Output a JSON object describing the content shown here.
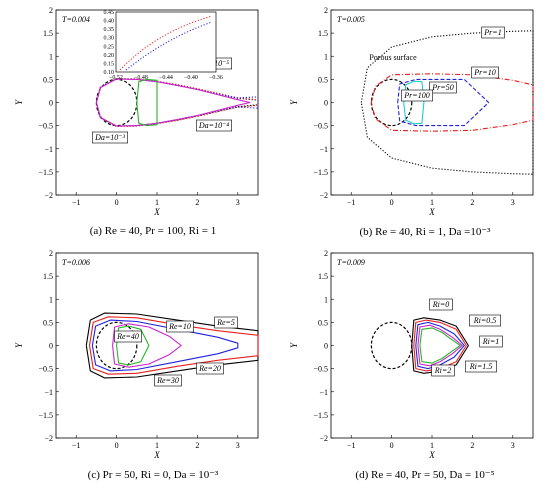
{
  "chart_data": [
    {
      "panel": "a",
      "type": "line",
      "caption": "(a) Re = 40, Pr = 100, Ri = 1",
      "time_label": "T=0.004",
      "xlabel": "X",
      "ylabel": "Y",
      "xlim": [
        -1.5,
        3.5
      ],
      "ylim": [
        -2.0,
        2.0
      ],
      "xticks": [
        -1,
        0,
        1,
        2,
        3
      ],
      "yticks": [
        -2.0,
        -1.5,
        -1.0,
        -0.5,
        0.0,
        0.5,
        1.0,
        1.5,
        2.0
      ],
      "annotations": [
        "Da=10⁻⁶",
        "Da=10⁻⁵",
        "Da=10⁻⁴",
        "Da=10⁻³"
      ],
      "inset": {
        "xticks": [
          -0.52,
          -0.48,
          -0.44,
          -0.4,
          -0.36
        ],
        "yticks": [
          0.1,
          0.15,
          0.2,
          0.25,
          0.3,
          0.35,
          0.4,
          0.45
        ]
      },
      "series": [
        {
          "color": "#000000",
          "style": "dotted",
          "x": [
            -0.5,
            -0.4,
            0.0,
            0.5,
            1.0,
            1.5,
            2.0,
            2.5,
            3.0,
            3.5
          ],
          "y": [
            0.0,
            0.33,
            0.51,
            0.5,
            0.45,
            0.38,
            0.29,
            0.19,
            0.09,
            0.05
          ]
        },
        {
          "color": "#e8211e",
          "style": "dotted",
          "x": [
            -0.5,
            -0.4,
            0.0,
            0.5,
            1.0,
            1.5,
            2.0,
            2.5,
            3.0,
            3.5
          ],
          "y": [
            0.0,
            0.33,
            0.52,
            0.51,
            0.46,
            0.39,
            0.3,
            0.2,
            0.1,
            0.06
          ]
        },
        {
          "color": "#2222dd",
          "style": "dotted",
          "x": [
            -0.5,
            -0.4,
            0.0,
            0.5,
            1.0,
            1.5,
            2.0,
            2.5,
            3.0,
            3.5
          ],
          "y": [
            0.0,
            0.33,
            0.51,
            0.5,
            0.45,
            0.37,
            0.28,
            0.18,
            0.1,
            0.12
          ]
        },
        {
          "color": "#cc22cc",
          "style": "solid",
          "x": [
            -0.5,
            -0.4,
            0.0,
            0.5,
            1.0,
            1.5,
            2.0,
            2.5,
            3.0,
            3.3
          ],
          "y": [
            0.0,
            0.32,
            0.51,
            0.5,
            0.45,
            0.37,
            0.28,
            0.17,
            0.06,
            0.0
          ]
        },
        {
          "color": "#2ab52a",
          "style": "solid",
          "x": [
            0.5,
            0.55,
            0.75,
            1.0
          ],
          "y": [
            0.0,
            0.45,
            0.5,
            0.48
          ]
        }
      ]
    },
    {
      "panel": "b",
      "type": "line",
      "caption": "(b) Re = 40, Ri = 1, Da =10⁻³",
      "time_label": "T=0.005",
      "xlabel": "X",
      "ylabel": "Y",
      "xlim": [
        -1.5,
        3.5
      ],
      "ylim": [
        -2.0,
        2.0
      ],
      "xticks": [
        -1,
        0,
        1,
        2,
        3
      ],
      "yticks": [
        -2.0,
        -1.5,
        -1.0,
        -0.5,
        0.0,
        0.5,
        1.0,
        1.5,
        2.0
      ],
      "annotations": [
        "Porous surface",
        "Pr=1",
        "Pr=10",
        "Pr=50",
        "Pr=100"
      ],
      "series": [
        {
          "name": "Pr=1",
          "color": "#000000",
          "style": "dotted",
          "x": [
            -0.75,
            -0.6,
            0.0,
            1.0,
            2.0,
            3.0,
            3.5
          ],
          "y": [
            0.0,
            0.75,
            1.2,
            1.42,
            1.5,
            1.54,
            1.55
          ]
        },
        {
          "name": "Pr=10",
          "color": "#e8211e",
          "style": "dashdot",
          "x": [
            -0.5,
            -0.4,
            0.0,
            1.0,
            2.0,
            3.0,
            3.5
          ],
          "y": [
            0.0,
            0.35,
            0.6,
            0.62,
            0.6,
            0.48,
            0.38
          ]
        },
        {
          "name": "Pr=50",
          "color": "#2222dd",
          "style": "dashed",
          "x": [
            0.15,
            0.2,
            0.6,
            1.2,
            1.8,
            2.4
          ],
          "y": [
            0.0,
            0.4,
            0.5,
            0.5,
            0.5,
            0.0
          ]
        },
        {
          "name": "Pr=100",
          "color": "#22cccc",
          "style": "solid",
          "x": [
            0.3,
            0.35,
            0.55,
            0.75,
            0.8
          ],
          "y": [
            0.0,
            0.38,
            0.46,
            0.45,
            0.0
          ]
        }
      ]
    },
    {
      "panel": "c",
      "type": "line",
      "caption": "(c) Pr = 50, Ri = 0, Da = 10⁻³",
      "time_label": "T=0.006",
      "xlabel": "X",
      "ylabel": "Y",
      "xlim": [
        -1.5,
        3.5
      ],
      "ylim": [
        -2.0,
        2.0
      ],
      "xticks": [
        -1,
        0,
        1,
        2,
        3
      ],
      "yticks": [
        -2.0,
        -1.5,
        -1.0,
        -0.5,
        0.0,
        0.5,
        1.0,
        1.5,
        2.0
      ],
      "annotations": [
        "Re=5",
        "Re=10",
        "Re=20",
        "Re=30",
        "Re=40"
      ],
      "series": [
        {
          "name": "Re=5",
          "color": "#000000",
          "style": "solid",
          "x": [
            -0.75,
            -0.65,
            -0.3,
            0.5,
            1.5,
            2.5,
            3.5
          ],
          "y": [
            0.0,
            0.55,
            0.7,
            0.68,
            0.55,
            0.42,
            0.32
          ]
        },
        {
          "name": "Re=10",
          "color": "#e8211e",
          "style": "solid",
          "x": [
            -0.67,
            -0.58,
            -0.2,
            0.5,
            1.5,
            2.5,
            3.5
          ],
          "y": [
            0.0,
            0.5,
            0.62,
            0.6,
            0.45,
            0.32,
            0.22
          ]
        },
        {
          "name": "Re=20",
          "color": "#2222dd",
          "style": "solid",
          "x": [
            -0.6,
            -0.52,
            -0.15,
            0.5,
            1.5,
            2.5,
            3.0
          ],
          "y": [
            0.0,
            0.42,
            0.55,
            0.52,
            0.35,
            0.18,
            0.05
          ]
        },
        {
          "name": "Re=30",
          "color": "#cc22cc",
          "style": "solid",
          "x": [
            -0.1,
            -0.05,
            0.3,
            0.8,
            1.3,
            1.6
          ],
          "y": [
            0.0,
            0.4,
            0.47,
            0.4,
            0.2,
            0.0
          ]
        },
        {
          "name": "Re=40",
          "color": "#2ab52a",
          "style": "solid",
          "x": [
            0.0,
            0.05,
            0.3,
            0.6,
            0.8
          ],
          "y": [
            0.0,
            0.38,
            0.42,
            0.35,
            0.0
          ]
        }
      ]
    },
    {
      "panel": "d",
      "type": "line",
      "caption": "(d) Re = 40, Pr = 50, Da = 10⁻⁵",
      "time_label": "T=0.009",
      "xlabel": "X",
      "ylabel": "Y",
      "xlim": [
        -1.5,
        3.5
      ],
      "ylim": [
        -2.0,
        2.0
      ],
      "xticks": [
        -1,
        0,
        1,
        2,
        3
      ],
      "yticks": [
        -2.0,
        -1.5,
        -1.0,
        -0.5,
        0.0,
        0.5,
        1.0,
        1.5,
        2.0
      ],
      "annotations": [
        "Ri=0",
        "Ri=0.5",
        "Ri=1",
        "Ri=1.5",
        "Ri=2"
      ],
      "series": [
        {
          "name": "Ri=0",
          "color": "#000000",
          "style": "solid",
          "x": [
            0.5,
            0.55,
            0.8,
            1.2,
            1.6,
            1.9
          ],
          "y": [
            0.0,
            0.55,
            0.6,
            0.55,
            0.42,
            0.0
          ]
        },
        {
          "name": "Ri=0.5",
          "color": "#e8211e",
          "style": "solid",
          "x": [
            0.55,
            0.6,
            0.85,
            1.2,
            1.6,
            1.85
          ],
          "y": [
            0.0,
            0.5,
            0.55,
            0.5,
            0.35,
            0.0
          ]
        },
        {
          "name": "Ri=1",
          "color": "#2222dd",
          "style": "solid",
          "x": [
            0.6,
            0.65,
            0.9,
            1.2,
            1.55,
            1.8
          ],
          "y": [
            0.0,
            0.45,
            0.5,
            0.42,
            0.25,
            0.0
          ]
        },
        {
          "name": "Ri=1.5",
          "color": "#cc22cc",
          "style": "solid",
          "x": [
            0.65,
            0.7,
            0.95,
            1.2,
            1.5,
            1.75
          ],
          "y": [
            0.0,
            0.4,
            0.44,
            0.35,
            0.18,
            0.0
          ]
        },
        {
          "name": "Ri=2",
          "color": "#2ab52a",
          "style": "solid",
          "x": [
            0.7,
            0.75,
            1.0,
            1.25,
            1.5,
            1.7
          ],
          "y": [
            0.0,
            0.35,
            0.38,
            0.28,
            0.12,
            0.0
          ]
        }
      ]
    }
  ]
}
